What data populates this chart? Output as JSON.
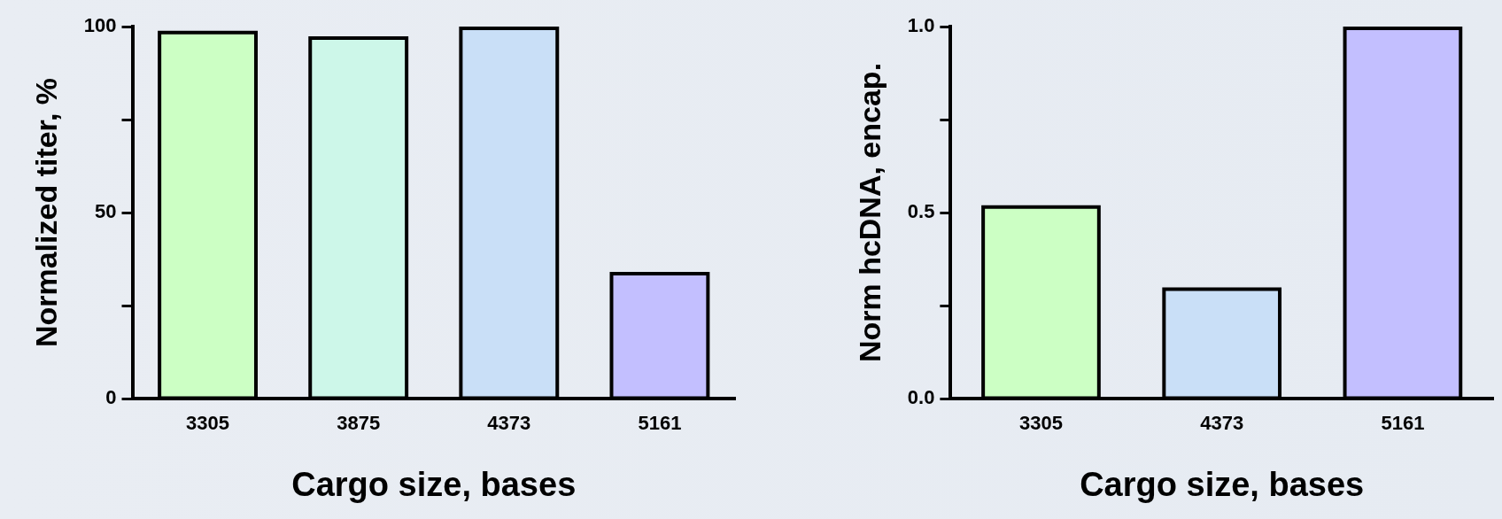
{
  "chart_data": [
    {
      "type": "bar",
      "xlabel": "Cargo size, bases",
      "ylabel": "Normalized titer, %",
      "categories": [
        "3305",
        "3875",
        "4373",
        "5161"
      ],
      "values": [
        98.4,
        96.9,
        99.5,
        33.6
      ],
      "colors": [
        "#ccffc4",
        "#cdf7e9",
        "#c9dff7",
        "#c3bfff"
      ],
      "ylim": [
        0,
        100
      ],
      "yticks": [
        0,
        {
          "value": 25,
          "label": null
        },
        50,
        {
          "value": 75,
          "label": null
        },
        100
      ]
    },
    {
      "type": "bar",
      "xlabel": "Cargo size, bases",
      "ylabel": "Norm hcDNA, encap.",
      "categories": [
        "3305",
        "4373",
        "5161"
      ],
      "values": [
        0.515,
        0.294,
        0.995
      ],
      "colors": [
        "#ccffc4",
        "#c9dff7",
        "#c3bfff"
      ],
      "ylim": [
        0,
        1.0
      ],
      "yticks": [
        {
          "value": 0,
          "label": "0.0"
        },
        {
          "value": 0.25,
          "label": null
        },
        0.5,
        {
          "value": 0.75,
          "label": null
        },
        {
          "value": 1,
          "label": "1.0"
        }
      ]
    }
  ]
}
